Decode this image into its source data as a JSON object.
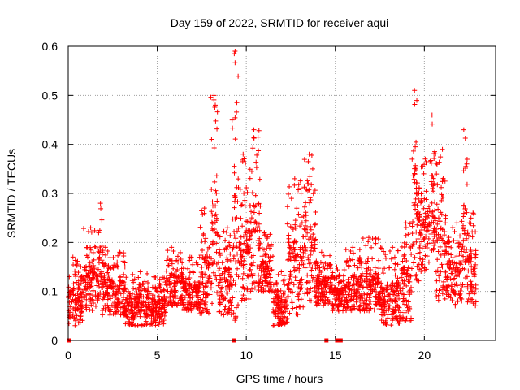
{
  "chart_data": {
    "type": "scatter",
    "title": "Day 159 of 2022, SRMTID for receiver aqui",
    "xlabel": "GPS time / hours",
    "ylabel": "SRMTID / TECUs",
    "xlim": [
      0,
      24
    ],
    "ylim": [
      0,
      0.6
    ],
    "xticks": [
      0,
      5,
      10,
      15,
      20
    ],
    "yticks": [
      0,
      0.1,
      0.2,
      0.3,
      0.4,
      0.5,
      0.6
    ],
    "ytick_labels": [
      "0",
      "0.1",
      "0.2",
      "0.3",
      "0.4",
      "0.5",
      "0.6"
    ],
    "grid": true,
    "marker": "+",
    "color": "#ff0000",
    "zero_markers_x": [
      0.05,
      9.3,
      14.5,
      15.1,
      15.3
    ],
    "profile": [
      {
        "start": 0.0,
        "end": 0.8,
        "lo": 0.03,
        "hi": 0.17
      },
      {
        "start": 0.8,
        "end": 1.7,
        "lo": 0.06,
        "hi": 0.23
      },
      {
        "start": 1.7,
        "end": 1.9,
        "lo": 0.09,
        "hi": 0.28
      },
      {
        "start": 1.9,
        "end": 2.5,
        "lo": 0.05,
        "hi": 0.19
      },
      {
        "start": 2.5,
        "end": 3.2,
        "lo": 0.05,
        "hi": 0.18
      },
      {
        "start": 3.2,
        "end": 4.5,
        "lo": 0.03,
        "hi": 0.14
      },
      {
        "start": 4.5,
        "end": 5.5,
        "lo": 0.03,
        "hi": 0.13
      },
      {
        "start": 5.5,
        "end": 6.5,
        "lo": 0.07,
        "hi": 0.19
      },
      {
        "start": 6.5,
        "end": 7.4,
        "lo": 0.06,
        "hi": 0.17
      },
      {
        "start": 7.4,
        "end": 8.0,
        "lo": 0.05,
        "hi": 0.27
      },
      {
        "start": 8.0,
        "end": 8.4,
        "lo": 0.07,
        "hi": 0.5
      },
      {
        "start": 8.4,
        "end": 9.2,
        "lo": 0.05,
        "hi": 0.23
      },
      {
        "start": 9.2,
        "end": 9.6,
        "lo": 0.04,
        "hi": 0.59
      },
      {
        "start": 9.6,
        "end": 10.2,
        "lo": 0.08,
        "hi": 0.38
      },
      {
        "start": 10.2,
        "end": 10.8,
        "lo": 0.1,
        "hi": 0.43
      },
      {
        "start": 10.8,
        "end": 11.5,
        "lo": 0.1,
        "hi": 0.22
      },
      {
        "start": 11.5,
        "end": 12.3,
        "lo": 0.03,
        "hi": 0.14
      },
      {
        "start": 12.3,
        "end": 13.2,
        "lo": 0.05,
        "hi": 0.33
      },
      {
        "start": 13.2,
        "end": 13.9,
        "lo": 0.08,
        "hi": 0.38
      },
      {
        "start": 13.9,
        "end": 14.8,
        "lo": 0.07,
        "hi": 0.18
      },
      {
        "start": 14.8,
        "end": 15.5,
        "lo": 0.06,
        "hi": 0.15
      },
      {
        "start": 15.5,
        "end": 16.5,
        "lo": 0.06,
        "hi": 0.19
      },
      {
        "start": 16.5,
        "end": 17.5,
        "lo": 0.06,
        "hi": 0.21
      },
      {
        "start": 17.5,
        "end": 18.7,
        "lo": 0.03,
        "hi": 0.19
      },
      {
        "start": 18.7,
        "end": 19.3,
        "lo": 0.04,
        "hi": 0.24
      },
      {
        "start": 19.3,
        "end": 19.7,
        "lo": 0.12,
        "hi": 0.51
      },
      {
        "start": 19.7,
        "end": 20.3,
        "lo": 0.14,
        "hi": 0.37
      },
      {
        "start": 20.3,
        "end": 20.6,
        "lo": 0.18,
        "hi": 0.46
      },
      {
        "start": 20.6,
        "end": 21.2,
        "lo": 0.08,
        "hi": 0.39
      },
      {
        "start": 21.2,
        "end": 22.1,
        "lo": 0.07,
        "hi": 0.24
      },
      {
        "start": 22.1,
        "end": 22.4,
        "lo": 0.1,
        "hi": 0.43
      },
      {
        "start": 22.4,
        "end": 22.9,
        "lo": 0.07,
        "hi": 0.26
      }
    ]
  }
}
